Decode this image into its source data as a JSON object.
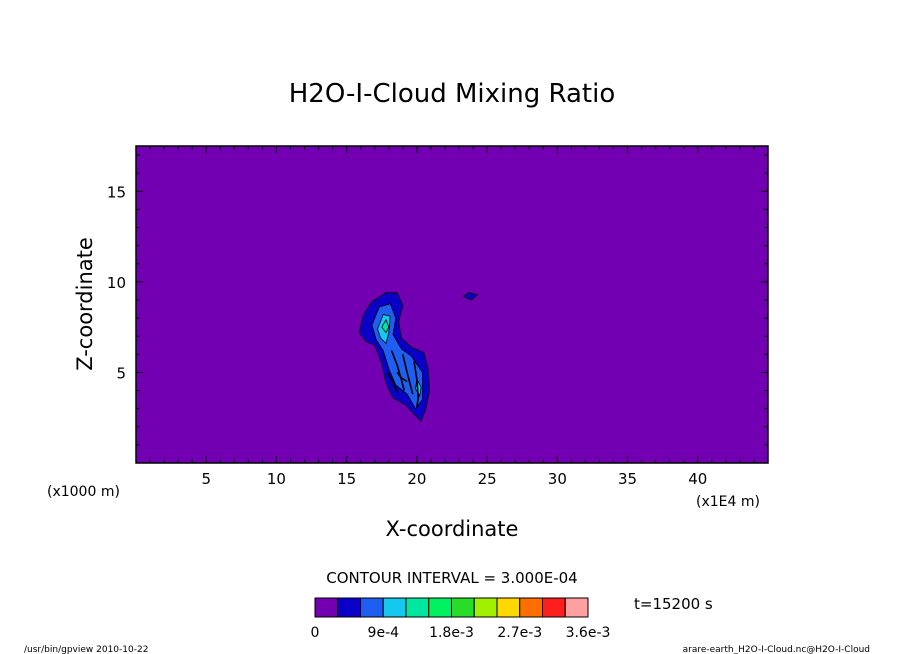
{
  "chart_data": {
    "type": "heatmap",
    "title": "H2O-I-Cloud Mixing Ratio",
    "xlabel": "X-coordinate",
    "ylabel": "Z-coordinate",
    "x_unit": "(x1E4 m)",
    "y_unit": "(x1000 m)",
    "xlim": [
      0,
      45
    ],
    "ylim": [
      0,
      17.5
    ],
    "x_ticks": [
      5,
      10,
      15,
      20,
      25,
      30,
      35,
      40
    ],
    "y_ticks": [
      5,
      10,
      15
    ],
    "contour_interval_text": "CONTOUR INTERVAL = 3.000E-04",
    "time_text": "t=15200 s",
    "background_color": "#7200b2",
    "levels": [
      0,
      0.0003,
      0.0006,
      0.0009,
      0.0012,
      0.0015,
      0.0018,
      0.0021,
      0.0024,
      0.0027,
      0.003,
      0.0033,
      0.0036
    ],
    "colorbar_colors": [
      "#7200b2",
      "#0a00c8",
      "#1e5ef0",
      "#14c8f0",
      "#00e8a0",
      "#00f060",
      "#28dc28",
      "#a0f000",
      "#ffd800",
      "#ff6e00",
      "#ff1e1e",
      "#ffa0a0"
    ],
    "colorbar_labels": [
      "0",
      "9e-4",
      "1.8e-3",
      "2.7e-3",
      "3.6e-3"
    ],
    "colorbar_label_indices": [
      0,
      3,
      6,
      9,
      12
    ],
    "cloud_regions": [
      {
        "level": 1,
        "points": [
          [
            15.9,
            7.2
          ],
          [
            16.2,
            8.2
          ],
          [
            16.8,
            8.9
          ],
          [
            17.8,
            9.4
          ],
          [
            18.6,
            9.4
          ],
          [
            19.0,
            8.7
          ],
          [
            18.7,
            7.8
          ],
          [
            18.9,
            6.9
          ],
          [
            19.6,
            6.4
          ],
          [
            20.5,
            6.1
          ],
          [
            20.8,
            5.2
          ],
          [
            20.9,
            4.0
          ],
          [
            20.6,
            2.9
          ],
          [
            20.3,
            2.3
          ],
          [
            19.8,
            2.7
          ],
          [
            19.2,
            3.2
          ],
          [
            18.3,
            3.6
          ],
          [
            17.8,
            4.4
          ],
          [
            17.5,
            5.5
          ],
          [
            17.0,
            6.5
          ],
          [
            16.4,
            6.7
          ]
        ]
      },
      {
        "level": 2,
        "points": [
          [
            16.8,
            7.6
          ],
          [
            17.3,
            8.6
          ],
          [
            18.1,
            8.8
          ],
          [
            18.5,
            8.0
          ],
          [
            18.3,
            7.1
          ],
          [
            18.9,
            6.3
          ],
          [
            19.6,
            5.9
          ],
          [
            20.4,
            5.0
          ],
          [
            20.4,
            3.5
          ],
          [
            19.9,
            3.0
          ],
          [
            19.3,
            3.8
          ],
          [
            18.5,
            4.3
          ],
          [
            18.0,
            5.2
          ],
          [
            17.6,
            6.2
          ],
          [
            17.1,
            6.8
          ]
        ]
      },
      {
        "level": 3,
        "points": [
          [
            17.2,
            7.4
          ],
          [
            17.6,
            8.2
          ],
          [
            18.1,
            8.1
          ],
          [
            18.0,
            7.2
          ],
          [
            17.8,
            6.6
          ],
          [
            17.4,
            6.9
          ]
        ]
      },
      {
        "level": 4,
        "points": [
          [
            17.5,
            7.5
          ],
          [
            17.8,
            7.9
          ],
          [
            18.0,
            7.5
          ],
          [
            17.8,
            7.2
          ]
        ]
      },
      {
        "level": 3,
        "points": [
          [
            20.0,
            4.6
          ],
          [
            20.3,
            4.2
          ],
          [
            20.2,
            3.7
          ],
          [
            19.9,
            4.1
          ]
        ]
      },
      {
        "level": 1,
        "points": [
          [
            23.3,
            9.2
          ],
          [
            23.7,
            9.4
          ],
          [
            24.3,
            9.3
          ],
          [
            23.9,
            9.0
          ]
        ]
      }
    ],
    "black_contour_lines": [
      [
        [
          18.2,
          6.2
        ],
        [
          18.6,
          5.4
        ],
        [
          18.9,
          4.6
        ],
        [
          19.1,
          4.0
        ]
      ],
      [
        [
          19.0,
          6.0
        ],
        [
          19.3,
          5.0
        ],
        [
          19.5,
          4.4
        ],
        [
          19.7,
          3.8
        ]
      ],
      [
        [
          19.8,
          5.6
        ],
        [
          20.0,
          4.6
        ],
        [
          20.1,
          3.6
        ],
        [
          20.0,
          3.1
        ]
      ],
      [
        [
          18.6,
          5.0
        ],
        [
          18.9,
          4.7
        ],
        [
          19.3,
          4.5
        ]
      ],
      [
        [
          17.9,
          5.0
        ],
        [
          18.3,
          4.5
        ],
        [
          18.6,
          3.9
        ]
      ]
    ]
  },
  "footer": {
    "left": "/usr/bin/gpview   2010-10-22",
    "right": "arare-earth_H2O-I-Cloud.nc@H2O-I-Cloud"
  }
}
